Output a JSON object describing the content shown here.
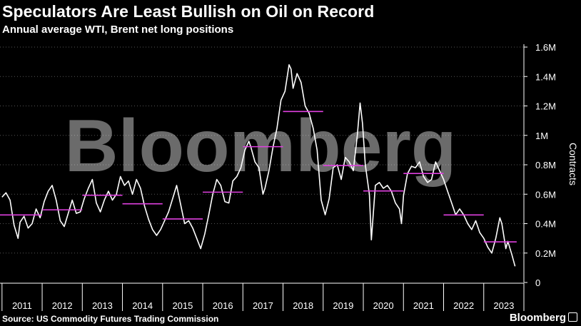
{
  "header": {
    "title": "Speculators Are Least Bullish on Oil on Record",
    "subtitle": "Annual average WTI, Brent net long positions"
  },
  "footer": {
    "source": "Source: US Commodity Futures Trading Commission",
    "brand": "Bloomberg"
  },
  "watermark": "Bloomberg",
  "colors": {
    "background": "#000000",
    "line": "#ffffff",
    "average": "#e040e0",
    "grid": "#555555"
  },
  "chart_data": {
    "type": "line",
    "ylabel": "Contracts",
    "ylim": [
      0,
      1600000
    ],
    "xlim": [
      2010.95,
      2024.0
    ],
    "y_ticks": [
      {
        "value": 0,
        "label": "0"
      },
      {
        "value": 200000,
        "label": "0.2M"
      },
      {
        "value": 400000,
        "label": "0.4M"
      },
      {
        "value": 600000,
        "label": "0.6M"
      },
      {
        "value": 800000,
        "label": "0.8M"
      },
      {
        "value": 1000000,
        "label": "1M"
      },
      {
        "value": 1200000,
        "label": "1.2M"
      },
      {
        "value": 1400000,
        "label": "1.4M"
      },
      {
        "value": 1600000,
        "label": "1.6M"
      }
    ],
    "x_ticks": [
      "2011",
      "2012",
      "2013",
      "2014",
      "2015",
      "2016",
      "2017",
      "2018",
      "2019",
      "2020",
      "2021",
      "2022",
      "2023"
    ],
    "grid": true,
    "series": [
      {
        "values": [
          [
            2011.0,
            580000
          ],
          [
            2011.1,
            610000
          ],
          [
            2011.2,
            560000
          ],
          [
            2011.3,
            390000
          ],
          [
            2011.4,
            300000
          ],
          [
            2011.45,
            410000
          ],
          [
            2011.55,
            450000
          ],
          [
            2011.65,
            370000
          ],
          [
            2011.75,
            400000
          ],
          [
            2011.85,
            500000
          ],
          [
            2011.95,
            440000
          ],
          [
            2012.05,
            550000
          ],
          [
            2012.15,
            620000
          ],
          [
            2012.25,
            660000
          ],
          [
            2012.35,
            560000
          ],
          [
            2012.45,
            420000
          ],
          [
            2012.55,
            380000
          ],
          [
            2012.65,
            470000
          ],
          [
            2012.75,
            560000
          ],
          [
            2012.85,
            470000
          ],
          [
            2012.95,
            480000
          ],
          [
            2013.05,
            570000
          ],
          [
            2013.15,
            640000
          ],
          [
            2013.25,
            700000
          ],
          [
            2013.35,
            540000
          ],
          [
            2013.45,
            480000
          ],
          [
            2013.55,
            560000
          ],
          [
            2013.65,
            620000
          ],
          [
            2013.75,
            560000
          ],
          [
            2013.85,
            600000
          ],
          [
            2013.95,
            720000
          ],
          [
            2014.05,
            660000
          ],
          [
            2014.15,
            690000
          ],
          [
            2014.25,
            600000
          ],
          [
            2014.35,
            700000
          ],
          [
            2014.45,
            640000
          ],
          [
            2014.55,
            520000
          ],
          [
            2014.65,
            430000
          ],
          [
            2014.75,
            360000
          ],
          [
            2014.85,
            320000
          ],
          [
            2014.95,
            360000
          ],
          [
            2015.05,
            420000
          ],
          [
            2015.15,
            480000
          ],
          [
            2015.25,
            570000
          ],
          [
            2015.35,
            660000
          ],
          [
            2015.45,
            530000
          ],
          [
            2015.55,
            400000
          ],
          [
            2015.65,
            420000
          ],
          [
            2015.75,
            370000
          ],
          [
            2015.85,
            300000
          ],
          [
            2015.95,
            230000
          ],
          [
            2016.05,
            330000
          ],
          [
            2016.15,
            460000
          ],
          [
            2016.25,
            600000
          ],
          [
            2016.35,
            700000
          ],
          [
            2016.45,
            660000
          ],
          [
            2016.55,
            550000
          ],
          [
            2016.65,
            540000
          ],
          [
            2016.75,
            690000
          ],
          [
            2016.85,
            720000
          ],
          [
            2016.95,
            780000
          ],
          [
            2017.05,
            900000
          ],
          [
            2017.15,
            960000
          ],
          [
            2017.2,
            920000
          ],
          [
            2017.3,
            820000
          ],
          [
            2017.4,
            780000
          ],
          [
            2017.5,
            600000
          ],
          [
            2017.55,
            640000
          ],
          [
            2017.65,
            760000
          ],
          [
            2017.75,
            920000
          ],
          [
            2017.85,
            1050000
          ],
          [
            2017.95,
            1240000
          ],
          [
            2018.05,
            1300000
          ],
          [
            2018.15,
            1480000
          ],
          [
            2018.2,
            1450000
          ],
          [
            2018.25,
            1320000
          ],
          [
            2018.35,
            1420000
          ],
          [
            2018.45,
            1360000
          ],
          [
            2018.55,
            1200000
          ],
          [
            2018.65,
            1150000
          ],
          [
            2018.75,
            1050000
          ],
          [
            2018.85,
            900000
          ],
          [
            2018.95,
            560000
          ],
          [
            2019.05,
            460000
          ],
          [
            2019.15,
            570000
          ],
          [
            2019.25,
            780000
          ],
          [
            2019.35,
            800000
          ],
          [
            2019.45,
            700000
          ],
          [
            2019.55,
            850000
          ],
          [
            2019.65,
            820000
          ],
          [
            2019.75,
            760000
          ],
          [
            2019.85,
            1000000
          ],
          [
            2019.92,
            1220000
          ],
          [
            2019.98,
            1080000
          ],
          [
            2020.05,
            800000
          ],
          [
            2020.15,
            600000
          ],
          [
            2020.2,
            290000
          ],
          [
            2020.3,
            660000
          ],
          [
            2020.4,
            680000
          ],
          [
            2020.5,
            640000
          ],
          [
            2020.6,
            660000
          ],
          [
            2020.7,
            620000
          ],
          [
            2020.8,
            540000
          ],
          [
            2020.9,
            500000
          ],
          [
            2020.95,
            400000
          ],
          [
            2021.0,
            590000
          ],
          [
            2021.1,
            740000
          ],
          [
            2021.2,
            790000
          ],
          [
            2021.3,
            780000
          ],
          [
            2021.4,
            820000
          ],
          [
            2021.5,
            720000
          ],
          [
            2021.6,
            680000
          ],
          [
            2021.7,
            700000
          ],
          [
            2021.8,
            820000
          ],
          [
            2021.9,
            760000
          ],
          [
            2022.0,
            700000
          ],
          [
            2022.1,
            620000
          ],
          [
            2022.2,
            540000
          ],
          [
            2022.3,
            460000
          ],
          [
            2022.4,
            500000
          ],
          [
            2022.5,
            460000
          ],
          [
            2022.6,
            400000
          ],
          [
            2022.7,
            360000
          ],
          [
            2022.8,
            420000
          ],
          [
            2022.9,
            340000
          ],
          [
            2023.0,
            300000
          ],
          [
            2023.1,
            240000
          ],
          [
            2023.2,
            200000
          ],
          [
            2023.3,
            300000
          ],
          [
            2023.4,
            440000
          ],
          [
            2023.45,
            400000
          ],
          [
            2023.55,
            230000
          ],
          [
            2023.6,
            280000
          ],
          [
            2023.7,
            190000
          ],
          [
            2023.78,
            110000
          ]
        ]
      },
      {
        "values": [
          [
            2010.95,
            459000
          ],
          [
            2012.0,
            459000
          ],
          [
            2012.0,
            494000
          ],
          [
            2013.0,
            494000
          ],
          [
            2013.0,
            593000
          ],
          [
            2014.0,
            593000
          ],
          [
            2014.0,
            535000
          ],
          [
            2015.0,
            535000
          ],
          [
            2015.0,
            432000
          ],
          [
            2016.0,
            432000
          ],
          [
            2016.0,
            614000
          ],
          [
            2017.0,
            614000
          ],
          [
            2017.0,
            923000
          ],
          [
            2018.0,
            923000
          ],
          [
            2018.0,
            1162000
          ],
          [
            2019.0,
            1162000
          ],
          [
            2019.0,
            795000
          ],
          [
            2020.0,
            795000
          ],
          [
            2020.0,
            622000
          ],
          [
            2021.0,
            622000
          ],
          [
            2021.0,
            741000
          ],
          [
            2022.0,
            741000
          ],
          [
            2022.0,
            459000
          ],
          [
            2023.0,
            459000
          ],
          [
            2023.0,
            276000
          ],
          [
            2023.82,
            276000
          ]
        ]
      }
    ]
  }
}
